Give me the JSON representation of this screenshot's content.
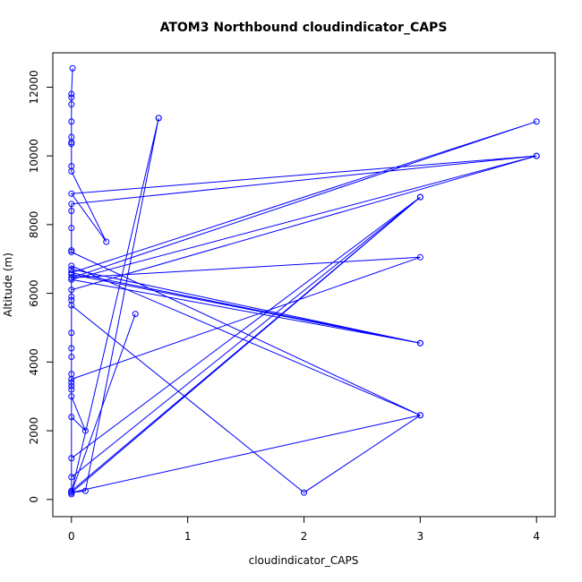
{
  "chart_data": {
    "type": "line",
    "title": "ATOM3 Northbound cloudindicator_CAPS",
    "xlabel": "cloudindicator_CAPS",
    "ylabel": "Altitude (m)",
    "xlim": [
      -0.16,
      4.16
    ],
    "ylim": [
      -500,
      13000
    ],
    "xticks": [
      0,
      1,
      2,
      3,
      4
    ],
    "yticks": [
      0,
      2000,
      4000,
      6000,
      8000,
      10000,
      12000
    ],
    "series_color": "#0000ff",
    "series": [
      {
        "values": [
          {
            "x": 0.01,
            "y": 12550
          },
          {
            "x": 0.0,
            "y": 11800
          },
          {
            "x": 0.0,
            "y": 11700
          },
          {
            "x": 0.0,
            "y": 11500
          },
          {
            "x": 0.0,
            "y": 11000
          },
          {
            "x": 0.0,
            "y": 10550
          },
          {
            "x": 0.0,
            "y": 10400
          },
          {
            "x": 0.0,
            "y": 10350
          },
          {
            "x": 0.0,
            "y": 9700
          },
          {
            "x": 0.0,
            "y": 9550
          },
          {
            "x": 0.3,
            "y": 7500
          },
          {
            "x": 0.0,
            "y": 8900
          },
          {
            "x": 4.0,
            "y": 10000
          },
          {
            "x": 0.0,
            "y": 8600
          },
          {
            "x": 0.0,
            "y": 8400
          },
          {
            "x": 0.0,
            "y": 7900
          },
          {
            "x": 0.0,
            "y": 7250
          },
          {
            "x": 0.0,
            "y": 7200
          },
          {
            "x": 3.0,
            "y": 2450
          },
          {
            "x": 0.0,
            "y": 6800
          },
          {
            "x": 0.0,
            "y": 6700
          },
          {
            "x": 3.0,
            "y": 4550
          },
          {
            "x": 0.0,
            "y": 6600
          },
          {
            "x": 4.0,
            "y": 11000
          },
          {
            "x": 0.0,
            "y": 6450
          },
          {
            "x": 3.0,
            "y": 7050
          },
          {
            "x": 0.0,
            "y": 3500
          },
          {
            "x": 0.0,
            "y": 6550
          },
          {
            "x": 3.0,
            "y": 4550
          },
          {
            "x": 0.0,
            "y": 6400
          },
          {
            "x": 4.0,
            "y": 10000
          },
          {
            "x": 0.0,
            "y": 6100
          },
          {
            "x": 0.0,
            "y": 5900
          },
          {
            "x": 0.0,
            "y": 5800
          },
          {
            "x": 0.0,
            "y": 5650
          },
          {
            "x": 2.0,
            "y": 200
          },
          {
            "x": 3.0,
            "y": 2450
          },
          {
            "x": 0.0,
            "y": 200
          },
          {
            "x": 0.0,
            "y": 4850
          },
          {
            "x": 0.0,
            "y": 4400
          },
          {
            "x": 0.0,
            "y": 4150
          },
          {
            "x": 0.0,
            "y": 3650
          },
          {
            "x": 0.0,
            "y": 3400
          },
          {
            "x": 0.0,
            "y": 3300
          },
          {
            "x": 0.0,
            "y": 3200
          },
          {
            "x": 0.0,
            "y": 3000
          },
          {
            "x": 0.12,
            "y": 2000
          },
          {
            "x": 0.0,
            "y": 2400
          },
          {
            "x": 0.0,
            "y": 1200
          },
          {
            "x": 3.0,
            "y": 8800
          },
          {
            "x": 0.0,
            "y": 650
          },
          {
            "x": 0.0,
            "y": 250
          },
          {
            "x": 3.0,
            "y": 8800
          },
          {
            "x": 0.0,
            "y": 200
          },
          {
            "x": 0.75,
            "y": 11100
          },
          {
            "x": 0.12,
            "y": 250
          },
          {
            "x": 0.0,
            "y": 200
          },
          {
            "x": 0.55,
            "y": 5400
          },
          {
            "x": 0.0,
            "y": 200
          },
          {
            "x": 0.75,
            "y": 11100
          },
          {
            "x": 0.0,
            "y": 200
          },
          {
            "x": 0.0,
            "y": 150
          }
        ]
      }
    ]
  }
}
